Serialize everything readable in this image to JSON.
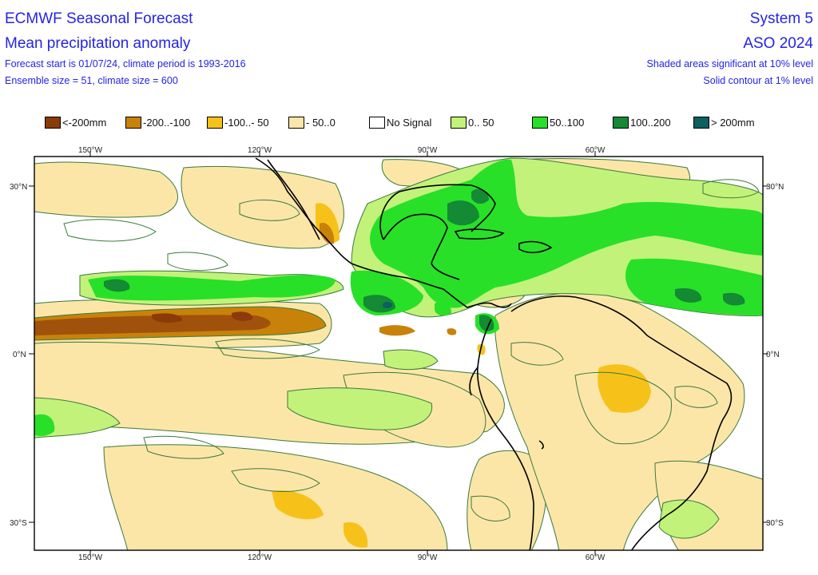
{
  "header": {
    "title": "ECMWF Seasonal Forecast",
    "subtitle": "Mean precipitation anomaly",
    "info_line1": "Forecast start is 01/07/24, climate period is 1993-2016",
    "info_line2": "Ensemble size = 51, climate size = 600",
    "system": "System 5",
    "season": "ASO 2024",
    "note_line1": "Shaded areas significant at 10% level",
    "note_line2": "Solid contour at 1% level"
  },
  "legend": [
    {
      "label": "<-200mm",
      "color": "#8b3a0a"
    },
    {
      "label": "-200..-100",
      "color": "#c8820a"
    },
    {
      "label": "-100..- 50",
      "color": "#f6c21a"
    },
    {
      "label": "- 50..0",
      "color": "#fbe6a8"
    },
    {
      "label": "No Signal",
      "color": "#ffffff"
    },
    {
      "label": "0.. 50",
      "color": "#c2f27a"
    },
    {
      "label": "50..100",
      "color": "#28e028"
    },
    {
      "label": "100..200",
      "color": "#138a33"
    },
    {
      "label": "> 200mm",
      "color": "#0e5f60"
    }
  ],
  "axes": {
    "lon_top": [
      "150°W",
      "120°W",
      "90°W",
      "60°W"
    ],
    "lon_bottom": [
      "150°W",
      "120°W",
      "90°W",
      "60°W"
    ],
    "lat_left": [
      "30°N",
      "0°N",
      "30°S"
    ],
    "lat_right": [
      "30°N",
      "0°N",
      "30°S"
    ]
  },
  "colors": {
    "text_blue": "#2424e6",
    "contour": "#3a7a3a",
    "coast": "#000000"
  }
}
